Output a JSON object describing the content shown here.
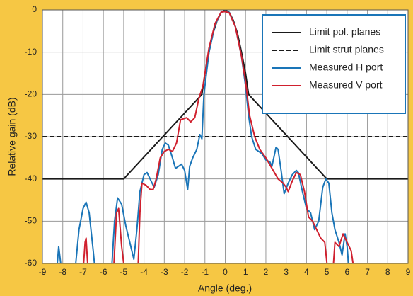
{
  "chart_data": {
    "type": "line",
    "xlabel": "Angle (deg.)",
    "ylabel": "Relative gain (dB)",
    "xlim": [
      -9,
      9
    ],
    "ylim": [
      -60,
      0
    ],
    "xticks": [
      -9,
      -8,
      -7,
      -6,
      -5,
      -4,
      -3,
      -2,
      -1,
      0,
      1,
      2,
      3,
      4,
      5,
      6,
      7,
      8,
      9
    ],
    "yticks": [
      -60,
      -50,
      -40,
      -30,
      -20,
      -10,
      0
    ],
    "grid": true,
    "legend": "upper right",
    "series": [
      {
        "name": "Limit pol. planes",
        "color": "#1a1a1a",
        "dash": false,
        "x": [
          -9,
          -5,
          -1.15,
          -1,
          -0.8,
          -0.6,
          -0.4,
          -0.2,
          0,
          0.2,
          0.4,
          0.6,
          0.8,
          1,
          1.15,
          5,
          9
        ],
        "values": [
          -40,
          -40,
          -20,
          -15,
          -10,
          -5.5,
          -2.5,
          -0.6,
          0,
          -0.6,
          -2.5,
          -5.5,
          -10,
          -15,
          -20,
          -40,
          -40
        ]
      },
      {
        "name": "Limit strut planes",
        "color": "#1a1a1a",
        "dash": true,
        "x": [
          -9,
          9
        ],
        "values": [
          -30,
          -30
        ]
      },
      {
        "name": "Measured H port",
        "color": "#1a75b8",
        "dash": false,
        "x": [
          -8.3,
          -8.2,
          -8.1,
          -8.0,
          -7.9,
          -7.4,
          -7.2,
          -7.0,
          -6.85,
          -6.7,
          -6.5,
          -6.4,
          -6.0,
          -5.6,
          -5.45,
          -5.3,
          -5.1,
          -4.9,
          -4.7,
          -4.5,
          -4.35,
          -4.2,
          -4.0,
          -3.85,
          -3.7,
          -3.5,
          -3.3,
          -3.1,
          -2.95,
          -2.8,
          -2.6,
          -2.45,
          -2.3,
          -2.15,
          -2.0,
          -1.85,
          -1.75,
          -1.6,
          -1.4,
          -1.25,
          -1.15,
          -1.05,
          -0.8,
          -0.5,
          -0.2,
          0,
          0.2,
          0.5,
          0.8,
          1.0,
          1.15,
          1.3,
          1.5,
          1.8,
          2.0,
          2.2,
          2.3,
          2.5,
          2.6,
          2.75,
          2.9,
          3.1,
          3.3,
          3.5,
          3.6,
          3.8,
          4.0,
          4.2,
          4.4,
          4.6,
          4.8,
          4.95,
          5.1,
          5.25,
          5.4,
          5.6,
          5.75,
          5.9,
          6.0,
          6.1
        ],
        "values": [
          -62,
          -56,
          -60,
          -62,
          null,
          -62,
          -52,
          -47,
          -45.5,
          -48,
          -57,
          -62,
          null,
          -62,
          -50,
          -44.5,
          -46,
          -51,
          -55,
          -59,
          -52,
          -43,
          -39,
          -38.5,
          -40,
          -42,
          -39,
          -33,
          -31.5,
          -32,
          -35,
          -37.5,
          -37,
          -36.5,
          -38,
          -42.5,
          -37,
          -35,
          -33,
          -29.5,
          -30.5,
          -20,
          -10,
          -3.5,
          -0.5,
          -0.3,
          -0.6,
          -4,
          -11,
          -18,
          -25,
          -30,
          -33,
          -34,
          -35.5,
          -36,
          -37,
          -32.5,
          -33,
          -38,
          -43.5,
          -41,
          -39,
          -38,
          -38.5,
          -43,
          -47,
          -48,
          -52,
          -50,
          -42,
          -40,
          -41,
          -48,
          -52,
          -55,
          -58,
          -53,
          -56,
          -62
        ]
      },
      {
        "name": "Measured V port",
        "color": "#d0202e",
        "dash": false,
        "x": [
          -7.0,
          -6.9,
          -6.85,
          -6.75,
          -6.0,
          -5.5,
          -5.35,
          -5.25,
          -5.1,
          -4.95,
          -4.6,
          -4.3,
          -4.2,
          -4.1,
          -3.9,
          -3.7,
          -3.55,
          -3.4,
          -3.2,
          -3.0,
          -2.8,
          -2.6,
          -2.4,
          -2.2,
          -1.9,
          -1.7,
          -1.5,
          -1.3,
          -1.1,
          -0.8,
          -0.5,
          -0.2,
          0,
          0.2,
          0.5,
          0.8,
          1.0,
          1.2,
          1.45,
          1.7,
          2.0,
          2.3,
          2.6,
          2.85,
          3.0,
          3.1,
          3.3,
          3.5,
          3.7,
          3.9,
          4.1,
          4.3,
          4.5,
          4.7,
          4.9,
          5.05,
          5.2,
          5.3,
          5.4,
          5.6,
          5.8,
          6.0,
          6.2,
          6.35
        ],
        "values": [
          -62,
          -55,
          -54,
          -62,
          null,
          -62,
          -48,
          -47,
          -56,
          -62,
          null,
          -62,
          -48,
          -41,
          -41.5,
          -42.5,
          -42.5,
          -40,
          -35,
          -33.5,
          -33,
          -33.5,
          -31.5,
          -26,
          -25.5,
          -26.5,
          -25.5,
          -21,
          -18,
          -9,
          -3.2,
          -0.5,
          -0.4,
          -0.7,
          -4,
          -11,
          -17,
          -25,
          -30,
          -33,
          -35,
          -37.5,
          -40,
          -41,
          -42,
          -43,
          -40.5,
          -38.5,
          -39,
          -43,
          -49,
          -50,
          -52,
          -54,
          -55,
          -62,
          null,
          -62,
          -55,
          -56,
          -53,
          -55,
          -57,
          -62
        ]
      }
    ]
  }
}
